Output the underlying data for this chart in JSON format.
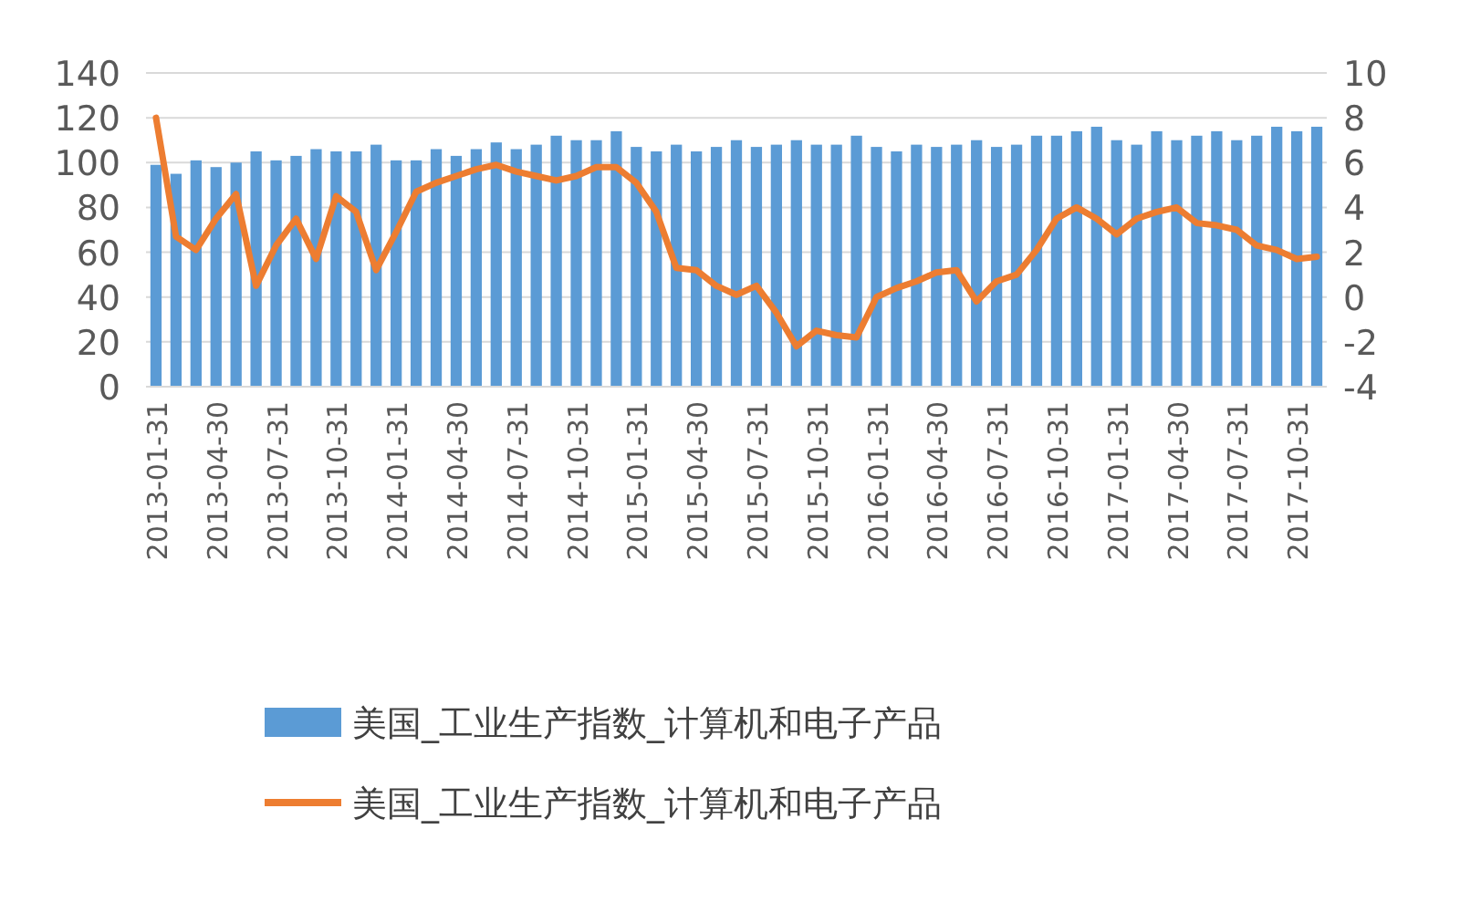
{
  "chart_data": {
    "type": "bar",
    "categories": [
      "2013-01-31",
      null,
      null,
      "2013-04-30",
      null,
      null,
      "2013-07-31",
      null,
      null,
      "2013-10-31",
      null,
      null,
      "2014-01-31",
      null,
      null,
      "2014-04-30",
      null,
      null,
      "2014-07-31",
      null,
      null,
      "2014-10-31",
      null,
      null,
      "2015-01-31",
      null,
      null,
      "2015-04-30",
      null,
      null,
      "2015-07-31",
      null,
      null,
      "2015-10-31",
      null,
      null,
      "2016-01-31",
      null,
      null,
      "2016-04-30",
      null,
      null,
      "2016-07-31",
      null,
      null,
      "2016-10-31",
      null,
      null,
      "2017-01-31",
      null,
      null,
      "2017-04-30",
      null,
      null,
      "2017-07-31",
      null,
      null,
      "2017-10-31",
      null
    ],
    "series": [
      {
        "name": "美国_工业生产指数_计算机和电子产品",
        "color": "#5b9bd5",
        "values": [
          99,
          95,
          101,
          98,
          100,
          105,
          101,
          103,
          106,
          105,
          105,
          108,
          101,
          101,
          106,
          103,
          106,
          109,
          106,
          108,
          112,
          110,
          110,
          114,
          107,
          105,
          108,
          105,
          107,
          110,
          107,
          108,
          110,
          108,
          108,
          112,
          107,
          105,
          108,
          107,
          108,
          110,
          107,
          108,
          112,
          112,
          114,
          116,
          110,
          108,
          114,
          110,
          112,
          114,
          110,
          112,
          116,
          114,
          116
        ]
      },
      {
        "name": "美国_工业生产指数_计算机和电子产品",
        "type": "line",
        "axis": "y2",
        "color": "#ed7d31",
        "values": [
          8.0,
          2.7,
          2.1,
          3.5,
          4.6,
          0.5,
          2.3,
          3.5,
          1.7,
          4.5,
          3.8,
          1.2,
          2.9,
          4.7,
          5.1,
          5.4,
          5.7,
          5.9,
          5.6,
          5.4,
          5.2,
          5.4,
          5.8,
          5.8,
          5.1,
          3.8,
          1.3,
          1.2,
          0.5,
          0.1,
          0.5,
          -0.7,
          -2.2,
          -1.5,
          -1.7,
          -1.8,
          0.0,
          0.4,
          0.7,
          1.1,
          1.2,
          -0.2,
          0.7,
          1.0,
          2.1,
          3.5,
          4.0,
          3.5,
          2.8,
          3.5,
          3.8,
          4.0,
          3.3,
          3.2,
          3.0,
          2.3,
          2.1,
          1.7,
          1.8
        ]
      }
    ],
    "ylim": [
      0,
      140
    ],
    "yticks": [
      0,
      20,
      40,
      60,
      80,
      100,
      120,
      140
    ],
    "y2lim": [
      -4,
      10
    ],
    "y2ticks": [
      -4,
      -2,
      0,
      2,
      4,
      6,
      8,
      10
    ],
    "grid": "y",
    "legend": "bottom"
  }
}
